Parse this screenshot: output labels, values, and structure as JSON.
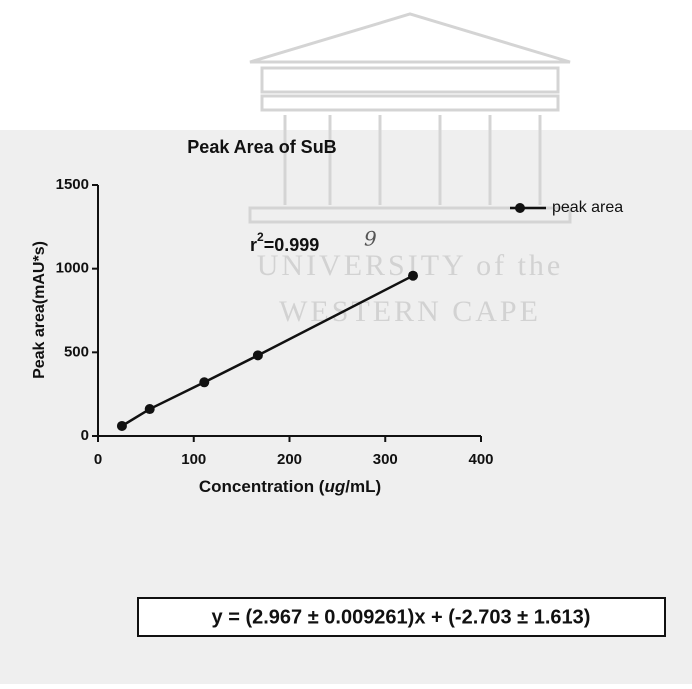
{
  "chart_data": {
    "type": "line",
    "title": "Peak Area of SuB",
    "x_label": {
      "before": "Concentration (",
      "italic": "ug",
      "after": "/mL)"
    },
    "y_label": "Peak area(mAU*s)",
    "x": [
      25,
      54,
      111,
      167,
      329
    ],
    "series": [
      {
        "name": "peak area",
        "color": "#111111",
        "values": [
          60,
          161,
          321,
          482,
          958
        ]
      }
    ],
    "xlim": [
      0,
      400
    ],
    "xticks": [
      0,
      100,
      200,
      300,
      400
    ],
    "ylim": [
      0,
      1500
    ],
    "yticks": [
      0,
      500,
      1000,
      1500
    ],
    "legend": "upper-right",
    "r2": {
      "base": "r",
      "sup": "2",
      "rest": "=0.999",
      "handwritten": "9"
    },
    "equation": "y = (2.967 ± 0.009261)x + (-2.703 ± 1.613)",
    "watermark": [
      "UNIVERSITY of the",
      "WESTERN CAPE"
    ]
  }
}
